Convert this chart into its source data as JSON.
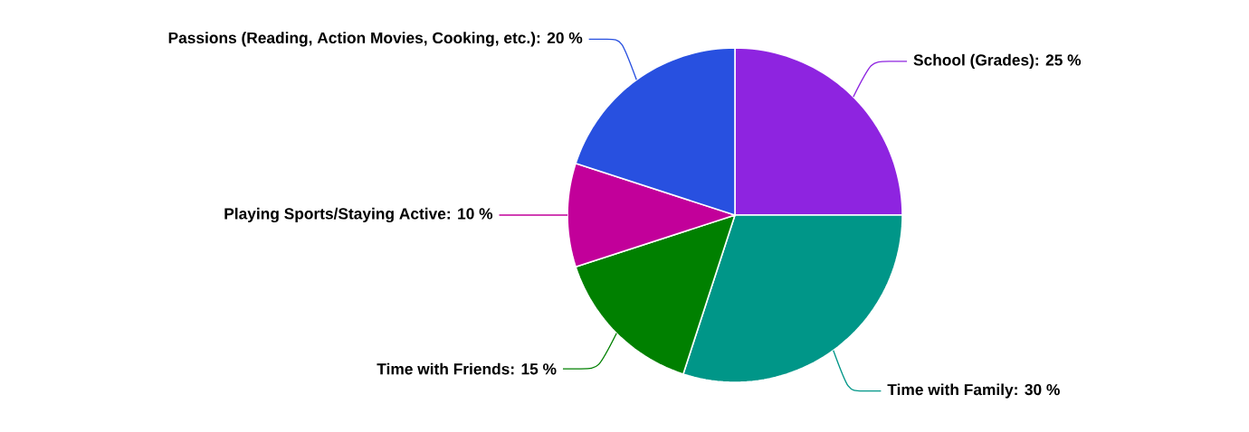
{
  "chart_data": {
    "type": "pie",
    "categories": [
      "School (Grades): 25 %",
      "Time with Family: 30 %",
      "Time with Friends: 15 %",
      "Playing Sports/Staying Active: 10 %",
      "Passions (Reading, Action Movies, Cooking, etc.): 20 %"
    ],
    "values": [
      25,
      30,
      15,
      10,
      20
    ],
    "colors": [
      "#8e24e0",
      "#009688",
      "#008000",
      "#c2009a",
      "#2850e0"
    ]
  }
}
